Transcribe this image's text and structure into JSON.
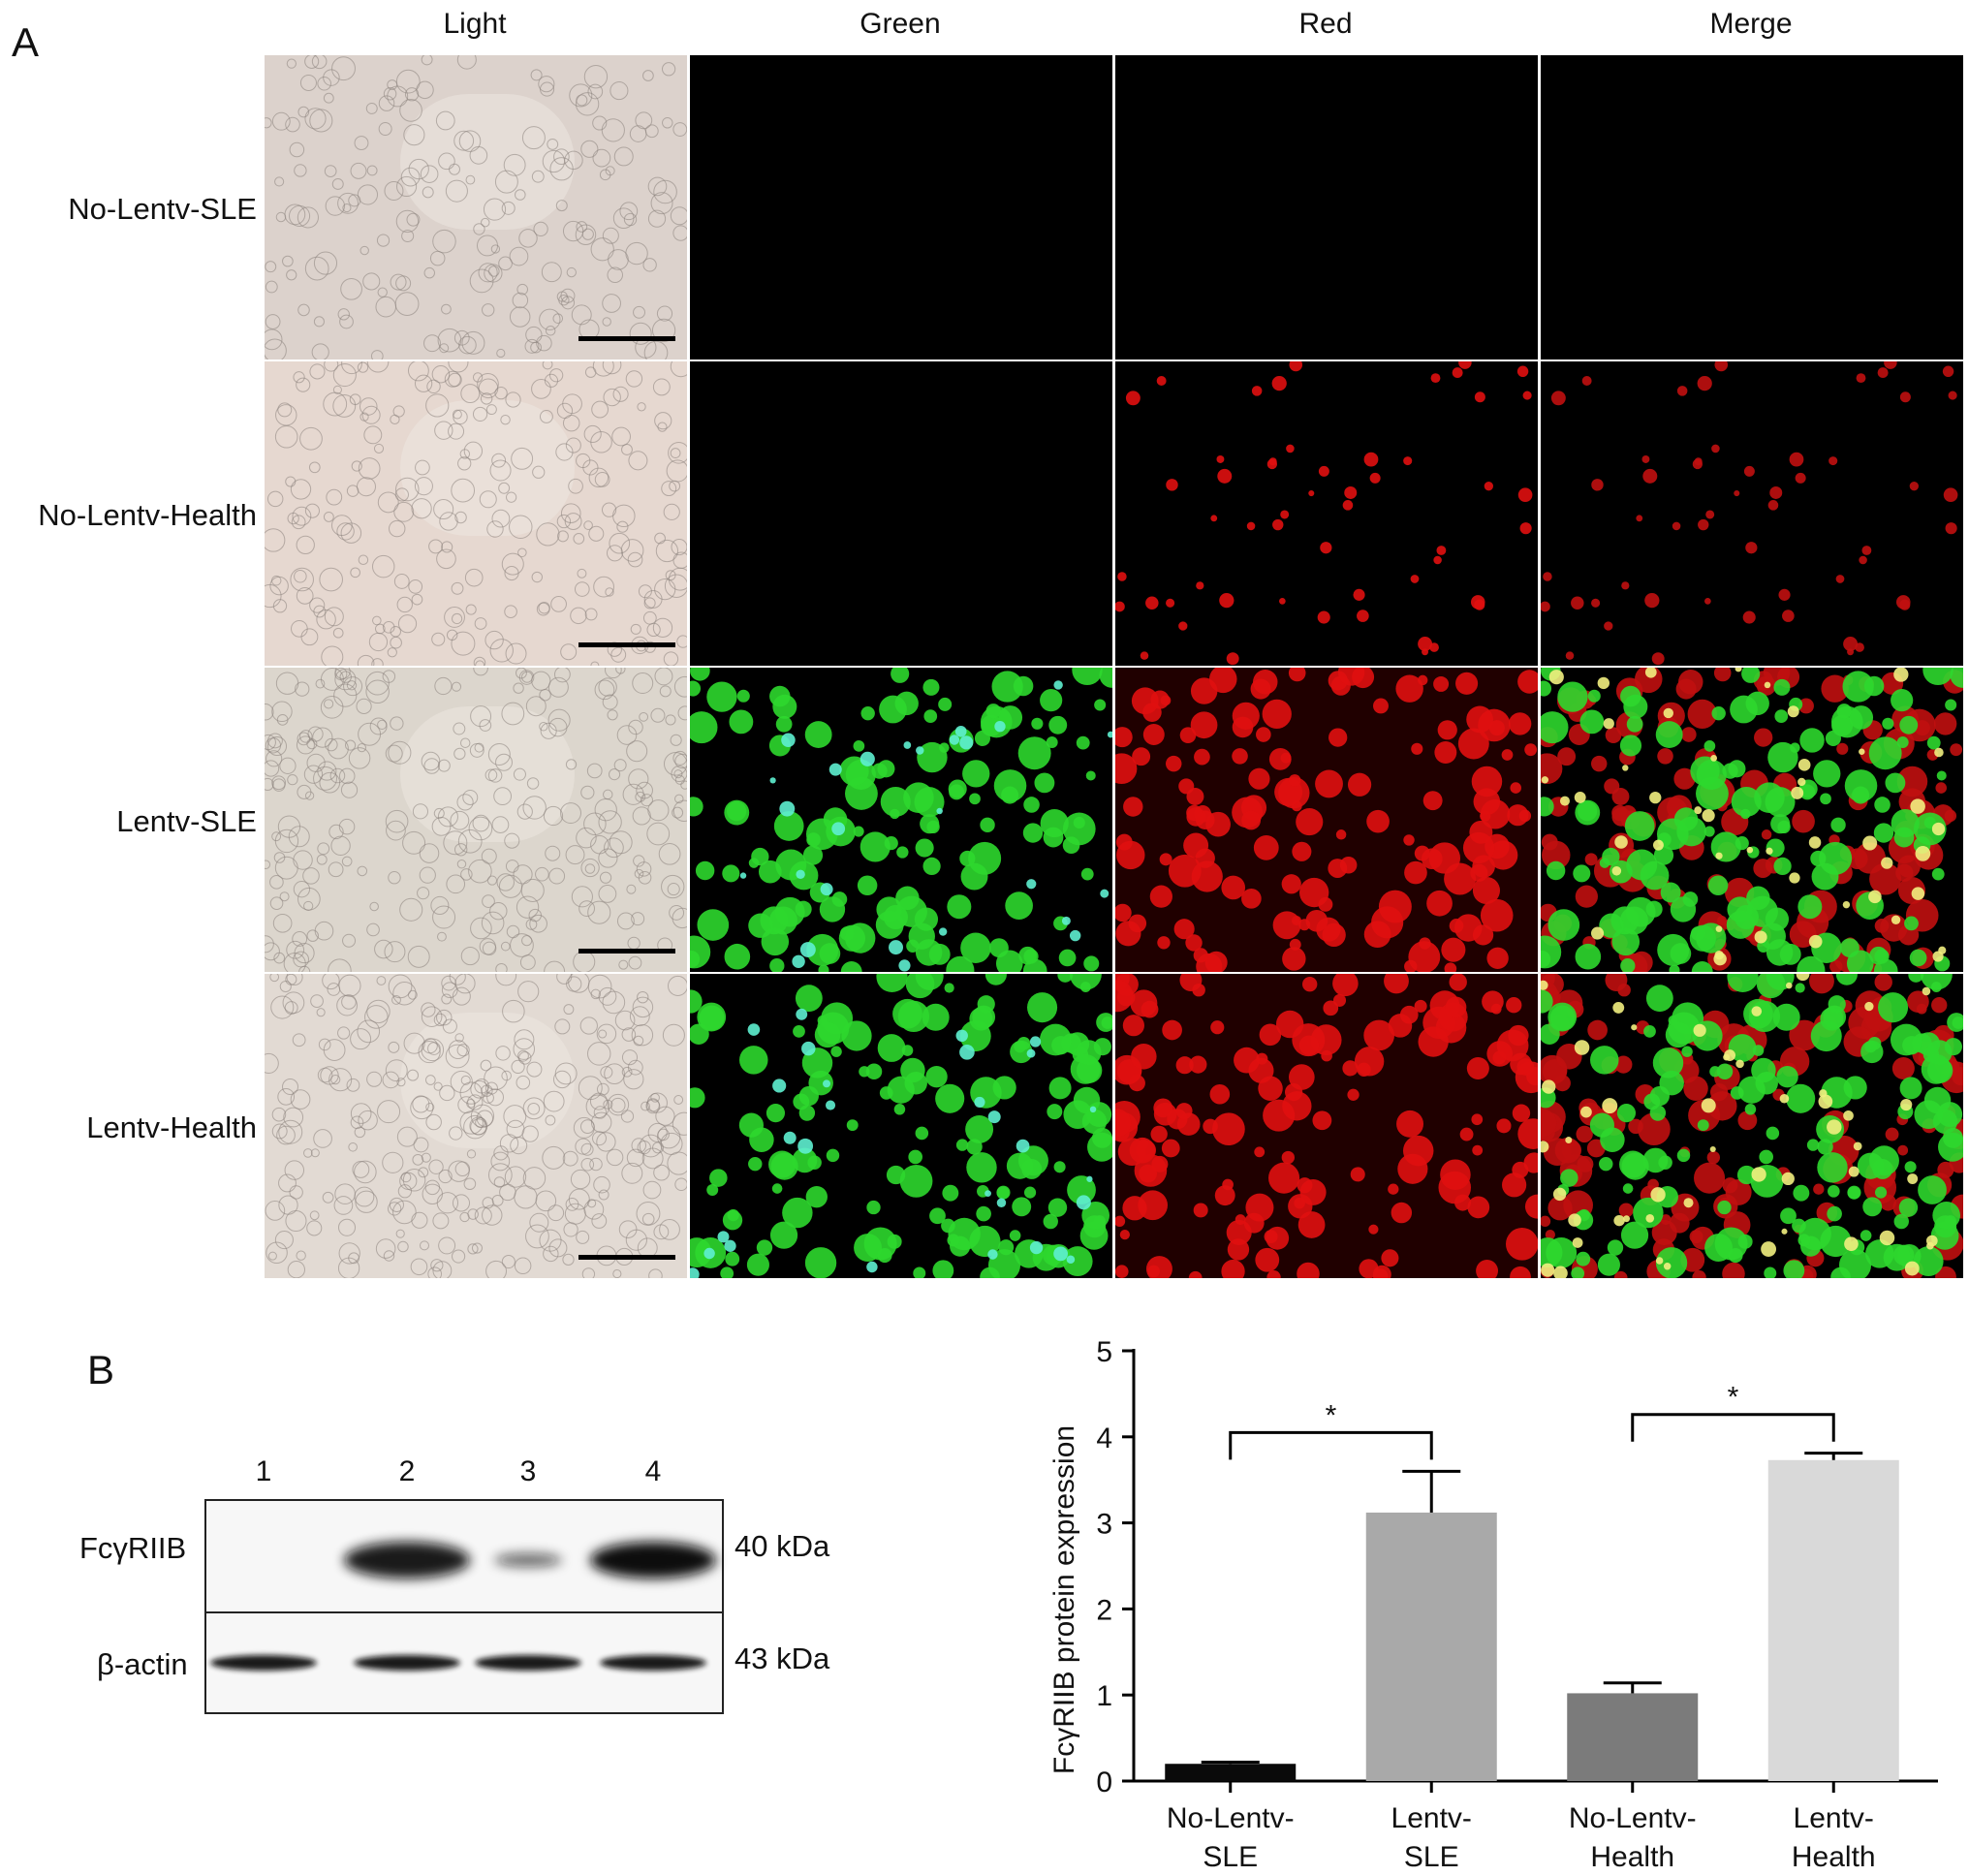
{
  "panel_a": {
    "letter": "A",
    "columns": [
      "Light",
      "Green",
      "Red",
      "Merge"
    ],
    "rows": [
      "No-Lentv-SLE",
      "No-Lentv-Health",
      "Lentv-SLE",
      "Lentv-Health"
    ],
    "fluorescence": [
      {
        "green": 0,
        "red": 0
      },
      {
        "green": 0,
        "red": 0.35
      },
      {
        "green": 0.9,
        "red": 0.9
      },
      {
        "green": 0.95,
        "red": 0.95
      }
    ]
  },
  "panel_b": {
    "letter": "B",
    "blot": {
      "lanes": [
        "1",
        "2",
        "3",
        "4"
      ],
      "rows": [
        {
          "label": "FcγRIIB",
          "size": "40 kDa",
          "band_intensity": [
            0,
            0.9,
            0.35,
            1.0
          ]
        },
        {
          "label": "β-actin",
          "size": "43 kDa",
          "band_intensity": [
            0.9,
            0.9,
            0.9,
            0.9
          ]
        }
      ]
    }
  },
  "chart_data": {
    "type": "bar",
    "categories": [
      [
        "No-Lentv-",
        "SLE"
      ],
      [
        "Lentv-",
        "SLE"
      ],
      [
        "No-Lentv-",
        "Health"
      ],
      [
        "Lentv-",
        "Health"
      ]
    ],
    "values": [
      0.2,
      3.12,
      1.02,
      3.73
    ],
    "errors": [
      0.02,
      0.48,
      0.12,
      0.08
    ],
    "colors": [
      "#0a0a0a",
      "#a9a9a9",
      "#7b7b7b",
      "#d9d9d9"
    ],
    "ylabel": "FcγRIIB protein expression",
    "xlabel": "",
    "ylim": [
      0,
      5
    ],
    "yticks": [
      0,
      1,
      2,
      3,
      4,
      5
    ],
    "significance": [
      {
        "from": 0,
        "to": 1,
        "label": "*"
      },
      {
        "from": 2,
        "to": 3,
        "label": "*"
      }
    ]
  }
}
